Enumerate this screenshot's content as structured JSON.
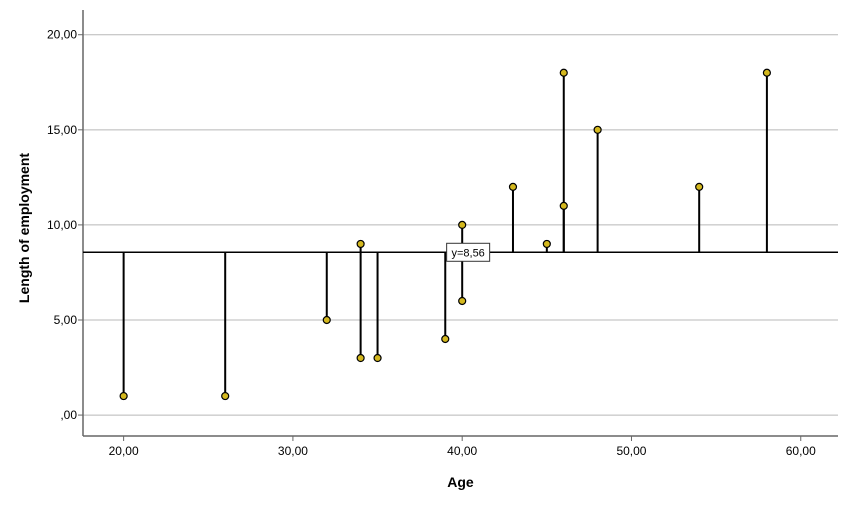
{
  "chart_data": {
    "type": "scatter",
    "title": "",
    "xlabel": "Age",
    "ylabel": "Length of employment",
    "xlim": [
      17.6,
      62.2
    ],
    "ylim": [
      -1.1,
      21.3
    ],
    "x_ticks": [
      20,
      30,
      40,
      50,
      60
    ],
    "x_tick_labels": [
      "20,00",
      "30,00",
      "40,00",
      "50,00",
      "60,00"
    ],
    "y_ticks": [
      0,
      5,
      10,
      15,
      20
    ],
    "y_tick_labels": [
      ",00",
      "5,00",
      "10,00",
      "15,00",
      "20,00"
    ],
    "grid": "horizontal",
    "reference_line": {
      "y": 8.56,
      "label": "y=8,56"
    },
    "drop_lines_to_reference": true,
    "colors": {
      "marker_fill": "#d4b81e",
      "marker_stroke": "#000000",
      "grid": "#b8b8b8",
      "axis": "#666666",
      "lines": "#000000"
    },
    "points": [
      {
        "x": 20,
        "y": 1
      },
      {
        "x": 26,
        "y": 1
      },
      {
        "x": 32,
        "y": 5
      },
      {
        "x": 34,
        "y": 9
      },
      {
        "x": 34,
        "y": 3
      },
      {
        "x": 35,
        "y": 3
      },
      {
        "x": 39,
        "y": 4
      },
      {
        "x": 40,
        "y": 10
      },
      {
        "x": 40,
        "y": 6
      },
      {
        "x": 43,
        "y": 12
      },
      {
        "x": 45,
        "y": 9
      },
      {
        "x": 46,
        "y": 18
      },
      {
        "x": 46,
        "y": 11
      },
      {
        "x": 48,
        "y": 15
      },
      {
        "x": 54,
        "y": 12
      },
      {
        "x": 58,
        "y": 18
      }
    ]
  }
}
